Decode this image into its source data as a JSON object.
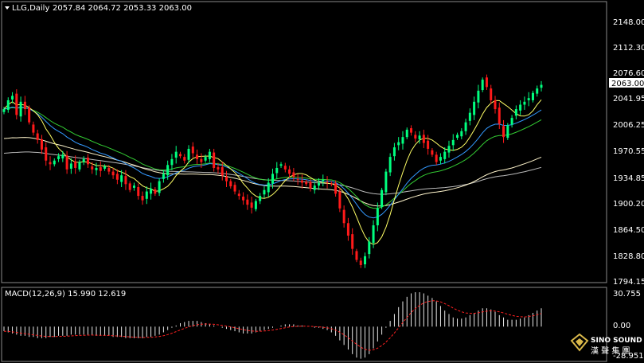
{
  "header": {
    "symbol_label": "LLG,Daily",
    "ohlc": "2057.84 2064.72 2053.33 2063.00",
    "macd_label": "MACD(12,26,9) 15.990 12.619"
  },
  "price_axis": {
    "ticks": [
      "2148.00",
      "2112.30",
      "2076.60",
      "2041.95",
      "2006.25",
      "1970.55",
      "1934.85",
      "1900.20",
      "1864.50",
      "1828.80",
      "1794.15"
    ],
    "current_label": "2063.00"
  },
  "macd_axis": {
    "ticks": [
      "30.755",
      "0.00",
      "-28.951"
    ]
  },
  "logo": {
    "line1": "SINO SOUND",
    "line2": "漢 聲 集 團"
  },
  "colors": {
    "background": "#000000",
    "up": "#00ff7f",
    "down": "#ff1a1a",
    "ma_fast": "#ffff66",
    "ma_blue": "#3399ff",
    "ma_green": "#33cc33",
    "ma_slow": "#fff5cc",
    "ma_long": "#bbbbbb",
    "macd_hist": "#e8e8e8",
    "macd_signal": "#ff2020"
  },
  "chart_data": {
    "type": "candlestick",
    "timeframe": "Daily",
    "ylim": [
      1794.15,
      2148.0
    ],
    "closes": [
      2030,
      2042,
      2048,
      2022,
      2040,
      2030,
      2012,
      1998,
      1988,
      1975,
      1960,
      1955,
      1960,
      1966,
      1968,
      1948,
      1956,
      1950,
      1958,
      1962,
      1955,
      1948,
      1950,
      1946,
      1952,
      1945,
      1940,
      1934,
      1940,
      1928,
      1920,
      1926,
      1912,
      1906,
      1918,
      1922,
      1915,
      1932,
      1942,
      1954,
      1962,
      1972,
      1966,
      1960,
      1976,
      1970,
      1962,
      1958,
      1965,
      1972,
      1950,
      1948,
      1940,
      1932,
      1925,
      1918,
      1912,
      1906,
      1900,
      1896,
      1905,
      1912,
      1920,
      1930,
      1942,
      1950,
      1955,
      1948,
      1942,
      1938,
      1934,
      1930,
      1928,
      1922,
      1926,
      1930,
      1934,
      1930,
      1928,
      1915,
      1895,
      1875,
      1858,
      1840,
      1825,
      1818,
      1830,
      1850,
      1872,
      1895,
      1920,
      1945,
      1965,
      1978,
      1985,
      1992,
      2002,
      1998,
      1990,
      1994,
      1984,
      1976,
      1968,
      1958,
      1965,
      1972,
      1980,
      1988,
      1995,
      2000,
      2012,
      2025,
      2040,
      2055,
      2070,
      2060,
      2042,
      2030,
      2010,
      1992,
      2008,
      2018,
      2030,
      2036,
      2040,
      2045,
      2052,
      2058,
      2063
    ],
    "macd": [
      -4,
      -5,
      -6,
      -7,
      -8,
      -8,
      -9,
      -9,
      -10,
      -10,
      -10,
      -9,
      -9,
      -8,
      -8,
      -8,
      -7,
      -7,
      -7,
      -7,
      -7,
      -7,
      -8,
      -8,
      -8,
      -8,
      -9,
      -9,
      -9,
      -10,
      -10,
      -10,
      -10,
      -10,
      -9,
      -9,
      -8,
      -7,
      -5,
      -3,
      -1,
      1,
      3,
      4,
      5,
      5,
      5,
      4,
      3,
      2,
      1,
      0,
      -1,
      -2,
      -3,
      -4,
      -5,
      -6,
      -6,
      -6,
      -5,
      -4,
      -3,
      -2,
      -1,
      0,
      1,
      2,
      2,
      2,
      1,
      1,
      0,
      0,
      -1,
      -1,
      -2,
      -3,
      -5,
      -8,
      -12,
      -16,
      -20,
      -24,
      -27,
      -28,
      -27,
      -24,
      -19,
      -13,
      -7,
      -1,
      5,
      11,
      17,
      22,
      26,
      29,
      30,
      30,
      29,
      27,
      25,
      22,
      18,
      14,
      11,
      8,
      7,
      7,
      8,
      10,
      12,
      14,
      16,
      16,
      15,
      13,
      10,
      8,
      6,
      6,
      6,
      7,
      8,
      10,
      12,
      14,
      16
    ],
    "macd_range": [
      -28.951,
      30.755
    ],
    "indicator": "MACD(12,26,9)",
    "macd_value": 15.99,
    "signal_value": 12.619
  }
}
